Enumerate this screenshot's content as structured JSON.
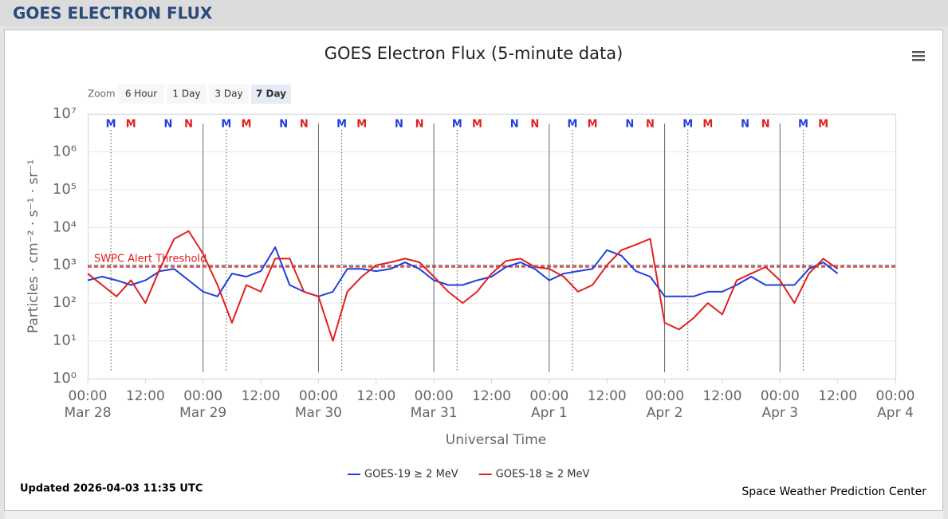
{
  "header": {
    "title": "GOES ELECTRON FLUX"
  },
  "zoom": {
    "label": "Zoom",
    "buttons": [
      "6 Hour",
      "1 Day",
      "3 Day",
      "7 Day"
    ],
    "active": 3
  },
  "chart_data": {
    "type": "line",
    "title": "GOES Electron Flux (5-minute data)",
    "x_label": "Universal Time",
    "y_label": "Particles · cm⁻² · s⁻¹ · sr⁻¹",
    "log_y": true,
    "grid": true,
    "x": [
      "Mar 28 00:00",
      "Mar 28 03:00",
      "Mar 28 06:00",
      "Mar 28 09:00",
      "Mar 28 12:00",
      "Mar 28 15:00",
      "Mar 28 18:00",
      "Mar 28 21:00",
      "Mar 29 00:00",
      "Mar 29 03:00",
      "Mar 29 06:00",
      "Mar 29 09:00",
      "Mar 29 12:00",
      "Mar 29 15:00",
      "Mar 29 18:00",
      "Mar 29 21:00",
      "Mar 30 00:00",
      "Mar 30 03:00",
      "Mar 30 06:00",
      "Mar 30 09:00",
      "Mar 30 12:00",
      "Mar 30 15:00",
      "Mar 30 18:00",
      "Mar 30 21:00",
      "Mar 31 00:00",
      "Mar 31 03:00",
      "Mar 31 06:00",
      "Mar 31 09:00",
      "Mar 31 12:00",
      "Mar 31 15:00",
      "Mar 31 18:00",
      "Mar 31 21:00",
      "Apr 1 00:00",
      "Apr 1 03:00",
      "Apr 1 06:00",
      "Apr 1 09:00",
      "Apr 1 12:00",
      "Apr 1 15:00",
      "Apr 1 18:00",
      "Apr 1 21:00",
      "Apr 2 00:00",
      "Apr 2 03:00",
      "Apr 2 06:00",
      "Apr 2 09:00",
      "Apr 2 12:00",
      "Apr 2 15:00",
      "Apr 2 18:00",
      "Apr 2 21:00",
      "Apr 3 00:00",
      "Apr 3 03:00",
      "Apr 3 06:00",
      "Apr 3 09:00",
      "Apr 3 12:00"
    ],
    "series": [
      {
        "name": "GOES-19 ≥ 2 MeV",
        "color": "#1f3fdc",
        "values": [
          400,
          500,
          400,
          300,
          400,
          700,
          800,
          400,
          200,
          150,
          600,
          500,
          700,
          3000,
          300,
          200,
          150,
          200,
          800,
          800,
          700,
          800,
          1200,
          800,
          400,
          300,
          300,
          400,
          500,
          900,
          1200,
          800,
          400,
          600,
          700,
          800,
          2500,
          1800,
          700,
          500,
          150,
          150,
          150,
          200,
          200,
          300,
          500,
          300,
          300,
          300,
          800,
          1200,
          600
        ]
      },
      {
        "name": "GOES-18 ≥ 2 MeV",
        "color": "#e0201f",
        "values": [
          600,
          300,
          150,
          400,
          100,
          800,
          5000,
          8000,
          2000,
          300,
          30,
          300,
          200,
          1500,
          1500,
          200,
          150,
          10,
          200,
          500,
          1000,
          1200,
          1500,
          1200,
          500,
          200,
          100,
          200,
          600,
          1300,
          1500,
          900,
          800,
          500,
          200,
          300,
          1000,
          2500,
          3500,
          5000,
          30,
          20,
          40,
          100,
          50,
          400,
          600,
          900,
          400,
          100,
          600,
          1500,
          800
        ]
      }
    ],
    "ylim": [
      1,
      10000000
    ],
    "yticks": [
      {
        "value": 1,
        "label": "10⁰"
      },
      {
        "value": 10,
        "label": "10¹"
      },
      {
        "value": 100,
        "label": "10²"
      },
      {
        "value": 1000,
        "label": "10³"
      },
      {
        "value": 10000,
        "label": "10⁴"
      },
      {
        "value": 100000,
        "label": "10⁵"
      },
      {
        "value": 1000000,
        "label": "10⁶"
      },
      {
        "value": 10000000,
        "label": "10⁷"
      }
    ],
    "xlim": [
      "Mar 28 00:00",
      "Apr 4 00:00"
    ],
    "xticks": [
      {
        "value": "Mar 28 00:00",
        "label": "00:00\nMar 28"
      },
      {
        "value": "Mar 28 12:00",
        "label": "12:00"
      },
      {
        "value": "Mar 29 00:00",
        "label": "00:00\nMar 29"
      },
      {
        "value": "Mar 29 12:00",
        "label": "12:00"
      },
      {
        "value": "Mar 30 00:00",
        "label": "00:00\nMar 30"
      },
      {
        "value": "Mar 30 12:00",
        "label": "12:00"
      },
      {
        "value": "Mar 31 00:00",
        "label": "00:00\nMar 31"
      },
      {
        "value": "Mar 31 12:00",
        "label": "12:00"
      },
      {
        "value": "Apr 1 00:00",
        "label": "00:00\nApr 1"
      },
      {
        "value": "Apr 1 12:00",
        "label": "12:00"
      },
      {
        "value": "Apr 2 00:00",
        "label": "00:00\nApr 2"
      },
      {
        "value": "Apr 2 12:00",
        "label": "12:00"
      },
      {
        "value": "Apr 3 00:00",
        "label": "00:00\nApr 3"
      },
      {
        "value": "Apr 3 12:00",
        "label": "12:00"
      },
      {
        "value": "Apr 4 00:00",
        "label": "00:00\nApr 4"
      }
    ],
    "threshold": {
      "value": 900,
      "label": "SWPC Alert Threshold",
      "color": "#e0201f"
    },
    "markers": [
      {
        "x": "Mar 28 04:50",
        "label": "M",
        "color": "#1f3fdc",
        "guide": true
      },
      {
        "x": "Mar 28 09:00",
        "label": "M",
        "color": "#e0201f"
      },
      {
        "x": "Mar 28 16:45",
        "label": "N",
        "color": "#1f3fdc"
      },
      {
        "x": "Mar 28 21:00",
        "label": "N",
        "color": "#e0201f"
      },
      {
        "x": "Mar 29 04:50",
        "label": "M",
        "color": "#1f3fdc",
        "guide": true
      },
      {
        "x": "Mar 29 09:00",
        "label": "M",
        "color": "#e0201f"
      },
      {
        "x": "Mar 29 16:45",
        "label": "N",
        "color": "#1f3fdc"
      },
      {
        "x": "Mar 29 21:00",
        "label": "N",
        "color": "#e0201f"
      },
      {
        "x": "Mar 30 04:50",
        "label": "M",
        "color": "#1f3fdc",
        "guide": true
      },
      {
        "x": "Mar 30 09:00",
        "label": "M",
        "color": "#e0201f"
      },
      {
        "x": "Mar 30 16:45",
        "label": "N",
        "color": "#1f3fdc"
      },
      {
        "x": "Mar 30 21:00",
        "label": "N",
        "color": "#e0201f"
      },
      {
        "x": "Mar 31 04:50",
        "label": "M",
        "color": "#1f3fdc",
        "guide": true
      },
      {
        "x": "Mar 31 09:00",
        "label": "M",
        "color": "#e0201f"
      },
      {
        "x": "Mar 31 16:45",
        "label": "N",
        "color": "#1f3fdc"
      },
      {
        "x": "Mar 31 21:00",
        "label": "N",
        "color": "#e0201f"
      },
      {
        "x": "Apr 1 04:50",
        "label": "M",
        "color": "#1f3fdc",
        "guide": true
      },
      {
        "x": "Apr 1 09:00",
        "label": "M",
        "color": "#e0201f"
      },
      {
        "x": "Apr 1 16:45",
        "label": "N",
        "color": "#1f3fdc"
      },
      {
        "x": "Apr 1 21:00",
        "label": "N",
        "color": "#e0201f"
      },
      {
        "x": "Apr 2 04:50",
        "label": "M",
        "color": "#1f3fdc",
        "guide": true
      },
      {
        "x": "Apr 2 09:00",
        "label": "M",
        "color": "#e0201f"
      },
      {
        "x": "Apr 2 16:45",
        "label": "N",
        "color": "#1f3fdc"
      },
      {
        "x": "Apr 2 21:00",
        "label": "N",
        "color": "#e0201f"
      },
      {
        "x": "Apr 3 04:50",
        "label": "M",
        "color": "#1f3fdc",
        "guide": true
      },
      {
        "x": "Apr 3 09:00",
        "label": "M",
        "color": "#e0201f"
      }
    ]
  },
  "footer": {
    "updated": "Updated 2026-04-03 11:35 UTC",
    "credit": "Space Weather Prediction Center"
  }
}
